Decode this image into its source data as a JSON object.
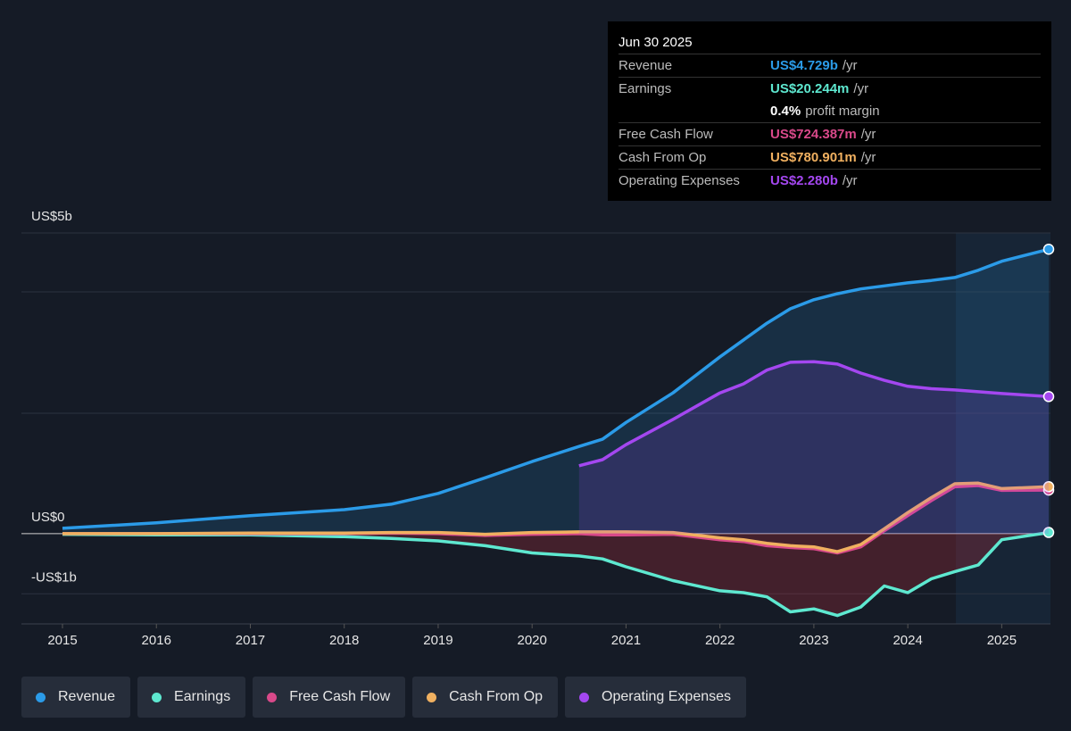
{
  "chart_data": {
    "type": "line",
    "xlim": [
      2015,
      2025.5
    ],
    "xticks": [
      2015,
      2016,
      2017,
      2018,
      2019,
      2020,
      2021,
      2022,
      2023,
      2024,
      2025
    ],
    "ylim": [
      -1.5,
      5
    ],
    "yticks": [
      {
        "value": 5,
        "label": "US$5b"
      },
      {
        "value": 0,
        "label": "US$0"
      },
      {
        "value": -1,
        "label": "-US$1b"
      }
    ],
    "x": [
      2015,
      2016,
      2017,
      2018,
      2018.5,
      2019,
      2019.5,
      2020,
      2020.5,
      2020.75,
      2021,
      2021.5,
      2022,
      2022.25,
      2022.5,
      2022.75,
      2023,
      2023.25,
      2023.5,
      2023.75,
      2024,
      2024.25,
      2024.5,
      2024.75,
      2025,
      2025.5
    ],
    "series": [
      {
        "name": "Revenue",
        "color": "#2b9be8",
        "fill": true,
        "values": [
          0.09,
          0.18,
          0.3,
          0.4,
          0.49,
          0.67,
          0.93,
          1.2,
          1.45,
          1.57,
          1.85,
          2.34,
          2.94,
          3.22,
          3.5,
          3.74,
          3.89,
          3.99,
          4.07,
          4.12,
          4.17,
          4.21,
          4.26,
          4.38,
          4.53,
          4.729
        ]
      },
      {
        "name": "Earnings",
        "color": "#5ee8d0",
        "fill": true,
        "values": [
          -0.01,
          -0.02,
          -0.02,
          -0.05,
          -0.08,
          -0.12,
          -0.2,
          -0.32,
          -0.37,
          -0.42,
          -0.55,
          -0.78,
          -0.95,
          -0.98,
          -1.05,
          -1.3,
          -1.25,
          -1.36,
          -1.22,
          -0.87,
          -0.98,
          -0.75,
          -0.63,
          -0.52,
          -0.1,
          0.020244
        ]
      },
      {
        "name": "Free Cash Flow",
        "color": "#d9498a",
        "fill": false,
        "values": [
          0,
          0,
          0,
          0,
          0.01,
          0,
          -0.03,
          -0.01,
          0,
          -0.02,
          -0.02,
          -0.01,
          -0.1,
          -0.13,
          -0.2,
          -0.23,
          -0.25,
          -0.32,
          -0.22,
          0.05,
          0.3,
          0.55,
          0.78,
          0.8,
          0.72,
          0.724387
        ]
      },
      {
        "name": "Cash From Op",
        "color": "#f0b060",
        "fill": false,
        "values": [
          0,
          0,
          0.01,
          0.01,
          0.02,
          0.02,
          -0.01,
          0.02,
          0.03,
          0.03,
          0.03,
          0.02,
          -0.07,
          -0.1,
          -0.16,
          -0.2,
          -0.22,
          -0.3,
          -0.18,
          0.08,
          0.35,
          0.6,
          0.83,
          0.84,
          0.75,
          0.780901
        ]
      },
      {
        "name": "Operating Expenses",
        "color": "#a447f0",
        "fill": true,
        "values": [
          null,
          null,
          null,
          null,
          null,
          null,
          null,
          null,
          1.13,
          1.23,
          1.48,
          1.9,
          2.34,
          2.49,
          2.72,
          2.85,
          2.86,
          2.82,
          2.67,
          2.55,
          2.45,
          2.41,
          2.39,
          2.36,
          2.33,
          2.28
        ]
      }
    ],
    "tooltip": {
      "date": "Jun 30 2025",
      "rows": [
        {
          "label": "Revenue",
          "value": "US$4.729b",
          "unit": "/yr"
        },
        {
          "label": "Earnings",
          "value": "US$20.244m",
          "unit": "/yr"
        },
        {
          "label": "",
          "value": "0.4%",
          "unit": "profit margin"
        },
        {
          "label": "Free Cash Flow",
          "value": "US$724.387m",
          "unit": "/yr"
        },
        {
          "label": "Cash From Op",
          "value": "US$780.901m",
          "unit": "/yr"
        },
        {
          "label": "Operating Expenses",
          "value": "US$2.280b",
          "unit": "/yr"
        }
      ]
    }
  }
}
